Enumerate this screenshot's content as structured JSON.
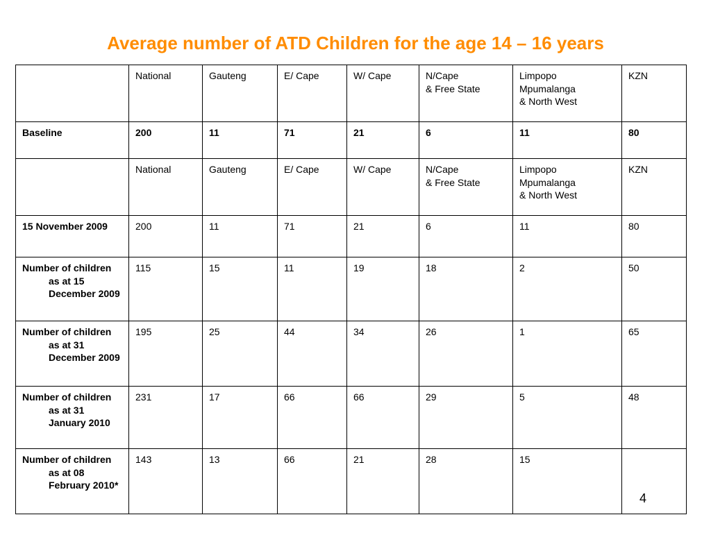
{
  "title": {
    "text": "Average number of ATD Children for the age 14 – 16 years",
    "color": "#FF8C00"
  },
  "table": {
    "header": [
      "",
      "National",
      "Gauteng",
      "E/ Cape",
      "W/ Cape",
      "N/Cape\n& Free State",
      "Limpopo\nMpumalanga\n& North West",
      "KZN"
    ],
    "rows": [
      {
        "label": "Baseline",
        "cells": [
          "200",
          "11",
          "71",
          "21",
          "6",
          "11",
          "80"
        ]
      },
      {
        "label": "",
        "cells": [
          "National",
          "Gauteng",
          "E/ Cape",
          "W/ Cape",
          "N/Cape\n& Free State",
          "Limpopo\nMpumalanga\n& North West",
          "KZN"
        ]
      },
      {
        "label": "15 November 2009",
        "cells": [
          "200",
          "11",
          "71",
          "21",
          "6",
          "11",
          "80"
        ]
      },
      {
        "label": "Number of children as at 15 December 2009",
        "cells": [
          "115",
          "15",
          "11",
          "19",
          "18",
          "2",
          "50"
        ]
      },
      {
        "label": "Number of children as at 31 December 2009",
        "cells": [
          "195",
          "25",
          "44",
          "34",
          "26",
          "1",
          "65"
        ]
      },
      {
        "label": "Number of children as at 31 January 2010",
        "cells": [
          "231",
          "17",
          "66",
          "66",
          "29",
          "5",
          "48"
        ]
      },
      {
        "label": "Number of children as at 08 February 2010*",
        "cells": [
          "143",
          "13",
          "66",
          "21",
          "28",
          "15",
          ""
        ]
      }
    ]
  },
  "page_number": "4"
}
